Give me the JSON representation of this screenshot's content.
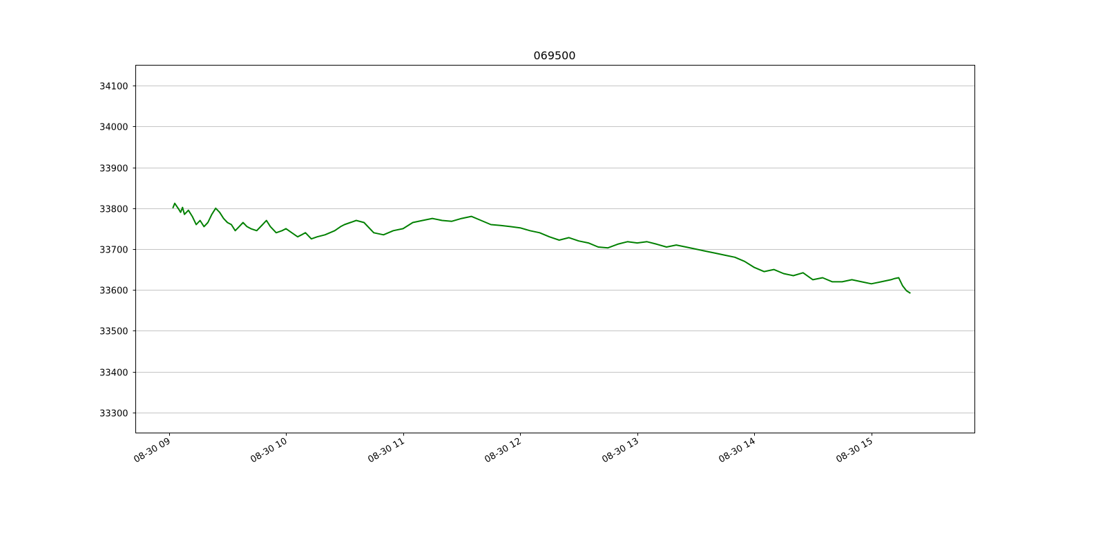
{
  "chart_data": {
    "type": "line",
    "title": "069500",
    "xlabel": "",
    "ylabel": "",
    "x_ticks": [
      "08-30 09",
      "08-30 10",
      "08-30 11",
      "08-30 12",
      "08-30 13",
      "08-30 14",
      "08-30 15"
    ],
    "y_ticks": [
      33300,
      33400,
      33500,
      33600,
      33700,
      33800,
      33900,
      34000,
      34100
    ],
    "xlim": [
      "08-30 08:43",
      "08-30 15:53"
    ],
    "ylim": [
      33250,
      34150
    ],
    "grid": "horizontal",
    "series": [
      {
        "color": "#008000",
        "x": [
          "08-30 09:02",
          "08-30 09:03",
          "08-30 09:04",
          "08-30 09:05",
          "08-30 09:06",
          "08-30 09:07",
          "08-30 09:08",
          "08-30 09:10",
          "08-30 09:12",
          "08-30 09:14",
          "08-30 09:16",
          "08-30 09:18",
          "08-30 09:20",
          "08-30 09:22",
          "08-30 09:24",
          "08-30 09:26",
          "08-30 09:28",
          "08-30 09:30",
          "08-30 09:32",
          "08-30 09:34",
          "08-30 09:36",
          "08-30 09:38",
          "08-30 09:40",
          "08-30 09:42",
          "08-30 09:45",
          "08-30 09:48",
          "08-30 09:50",
          "08-30 09:52",
          "08-30 09:55",
          "08-30 09:58",
          "08-30 10:00",
          "08-30 10:03",
          "08-30 10:06",
          "08-30 10:08",
          "08-30 10:10",
          "08-30 10:13",
          "08-30 10:16",
          "08-30 10:20",
          "08-30 10:25",
          "08-30 10:28",
          "08-30 10:30",
          "08-30 10:33",
          "08-30 10:36",
          "08-30 10:40",
          "08-30 10:45",
          "08-30 10:50",
          "08-30 10:55",
          "08-30 11:00",
          "08-30 11:05",
          "08-30 11:10",
          "08-30 11:15",
          "08-30 11:20",
          "08-30 11:25",
          "08-30 11:30",
          "08-30 11:35",
          "08-30 11:40",
          "08-30 11:45",
          "08-30 11:50",
          "08-30 11:55",
          "08-30 12:00",
          "08-30 12:05",
          "08-30 12:10",
          "08-30 12:15",
          "08-30 12:20",
          "08-30 12:25",
          "08-30 12:30",
          "08-30 12:35",
          "08-30 12:40",
          "08-30 12:45",
          "08-30 12:50",
          "08-30 12:55",
          "08-30 13:00",
          "08-30 13:05",
          "08-30 13:10",
          "08-30 13:15",
          "08-30 13:20",
          "08-30 13:25",
          "08-30 13:30",
          "08-30 13:35",
          "08-30 13:40",
          "08-30 13:45",
          "08-30 13:50",
          "08-30 13:55",
          "08-30 14:00",
          "08-30 14:05",
          "08-30 14:10",
          "08-30 14:15",
          "08-30 14:20",
          "08-30 14:25",
          "08-30 14:30",
          "08-30 14:35",
          "08-30 14:40",
          "08-30 14:45",
          "08-30 14:50",
          "08-30 14:55",
          "08-30 15:00",
          "08-30 15:05",
          "08-30 15:10",
          "08-30 15:12",
          "08-30 15:14",
          "08-30 15:16",
          "08-30 15:18",
          "08-30 15:20"
        ],
        "y": [
          33800,
          33812,
          33805,
          33798,
          33790,
          33802,
          33785,
          33795,
          33780,
          33760,
          33770,
          33755,
          33765,
          33785,
          33800,
          33790,
          33775,
          33765,
          33760,
          33745,
          33755,
          33765,
          33755,
          33750,
          33745,
          33760,
          33770,
          33755,
          33740,
          33745,
          33750,
          33740,
          33730,
          33735,
          33740,
          33725,
          33730,
          33735,
          33745,
          33755,
          33760,
          33765,
          33770,
          33765,
          33740,
          33735,
          33745,
          33750,
          33765,
          33770,
          33775,
          33770,
          33768,
          33775,
          33780,
          33770,
          33760,
          33758,
          33755,
          33752,
          33745,
          33740,
          33730,
          33722,
          33728,
          33720,
          33715,
          33705,
          33703,
          33712,
          33718,
          33715,
          33718,
          33712,
          33705,
          33710,
          33705,
          33700,
          33695,
          33690,
          33685,
          33680,
          33670,
          33655,
          33645,
          33650,
          33640,
          33635,
          33642,
          33625,
          33630,
          33620,
          33620,
          33625,
          33620,
          33615,
          33620,
          33625,
          33628,
          33630,
          33610,
          33598,
          33592
        ]
      }
    ]
  }
}
